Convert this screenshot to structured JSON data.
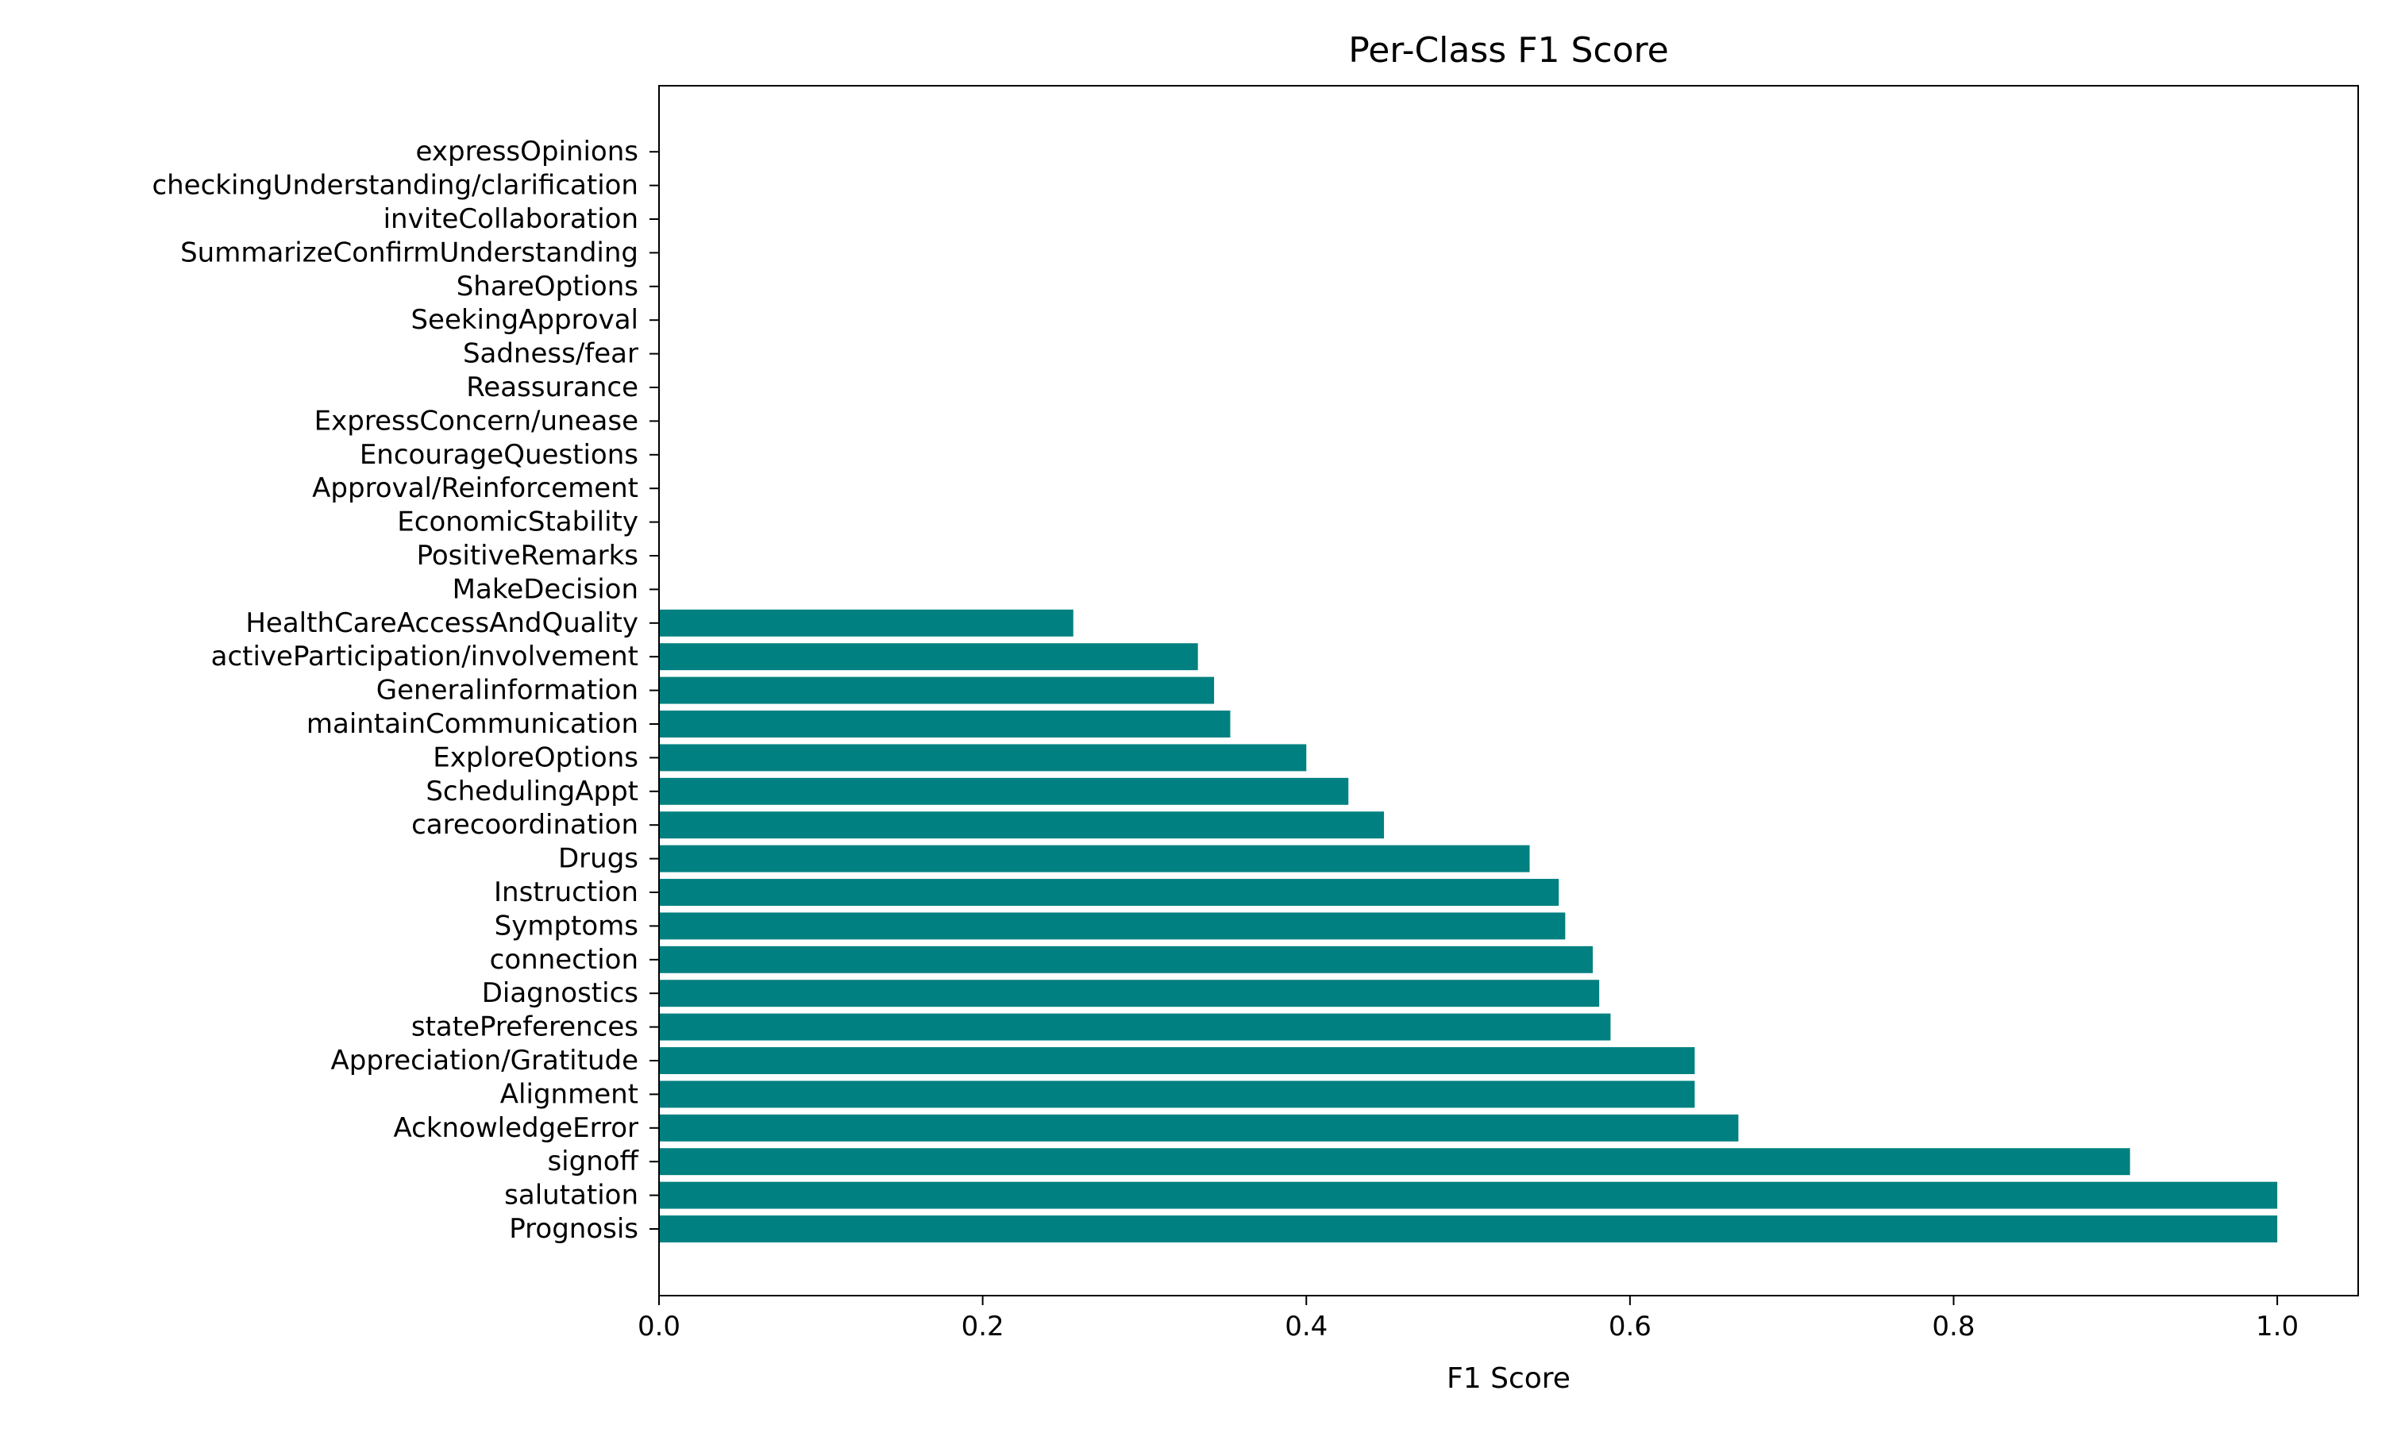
{
  "colors": {
    "bar": "#008080",
    "axis": "#000000",
    "background": "#ffffff"
  },
  "chart_data": {
    "type": "bar",
    "orientation": "horizontal",
    "title": "Per-Class F1 Score",
    "xlabel": "F1 Score",
    "ylabel": "",
    "xlim": [
      0,
      1.05
    ],
    "xticks": [
      "0.0",
      "0.2",
      "0.4",
      "0.6",
      "0.8",
      "1.0"
    ],
    "grid": false,
    "categories": [
      "Prognosis",
      "salutation",
      "signoff",
      "AcknowledgeError",
      "Alignment",
      "Appreciation/Gratitude",
      "statePreferences",
      "Diagnostics",
      "connection",
      "Symptoms",
      "Instruction",
      "Drugs",
      "carecoordination",
      "SchedulingAppt",
      "ExploreOptions",
      "maintainCommunication",
      "Generalinformation",
      "activeParticipation/involvement",
      "HealthCareAccessAndQuality",
      "MakeDecision",
      "PositiveRemarks",
      "EconomicStability",
      "Approval/Reinforcement",
      "EncourageQuestions",
      "ExpressConcern/unease",
      "Reassurance",
      "Sadness/fear",
      "SeekingApproval",
      "ShareOptions",
      "SummarizeConfirmUnderstanding",
      "inviteCollaboration",
      "checkingUnderstanding/clarification",
      "expressOpinions"
    ],
    "values": [
      1.0,
      1.0,
      0.909,
      0.667,
      0.64,
      0.64,
      0.588,
      0.581,
      0.577,
      0.56,
      0.556,
      0.538,
      0.448,
      0.426,
      0.4,
      0.353,
      0.343,
      0.333,
      0.256,
      0,
      0,
      0,
      0,
      0,
      0,
      0,
      0,
      0,
      0,
      0,
      0,
      0,
      0
    ]
  }
}
